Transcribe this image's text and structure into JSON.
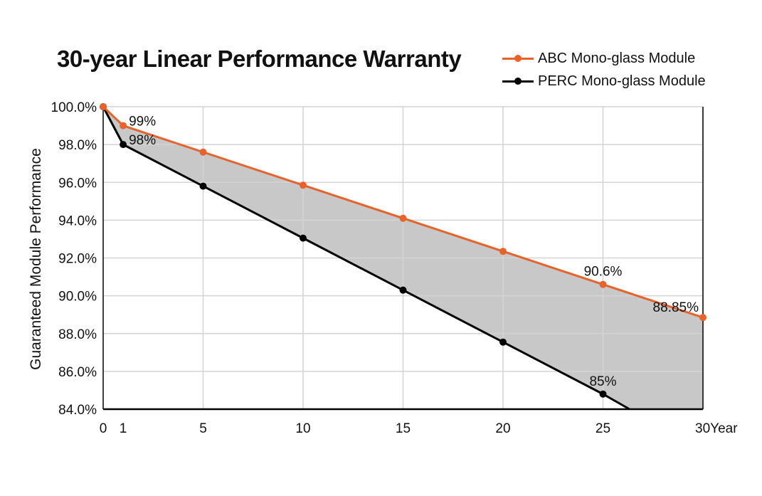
{
  "chart_data": {
    "type": "line",
    "title": "30-year Linear Performance Warranty",
    "xlabel": "Year",
    "ylabel": "Guaranteed Module Performance",
    "x_ticks": [
      0,
      1,
      5,
      10,
      15,
      20,
      25,
      30
    ],
    "x_tick_labels": [
      "0",
      "1",
      "5",
      "10",
      "15",
      "20",
      "25",
      "30Year"
    ],
    "xlim": [
      0,
      30
    ],
    "y_ticks": [
      84,
      86,
      88,
      90,
      92,
      94,
      96,
      98,
      100
    ],
    "y_tick_labels": [
      "84.0%",
      "86.0%",
      "88.0%",
      "90.0%",
      "92.0%",
      "94.0%",
      "96.0%",
      "98.0%",
      "100.0%"
    ],
    "ylim": [
      84,
      100
    ],
    "grid": true,
    "legend_position": "top-right",
    "shade_between_series": true,
    "series": [
      {
        "name": "ABC Mono-glass Module",
        "color": "#E8622C",
        "x": [
          0,
          1,
          5,
          10,
          15,
          20,
          25,
          30
        ],
        "values": [
          100,
          99,
          97.6,
          95.85,
          94.1,
          92.35,
          90.6,
          88.85
        ]
      },
      {
        "name": "PERC Mono-glass Module",
        "color": "#000000",
        "x": [
          0,
          1,
          5,
          10,
          15,
          20,
          25
        ],
        "values": [
          100,
          98,
          95.8,
          93.05,
          90.3,
          87.55,
          84.8
        ],
        "line_end": {
          "x": 26.33,
          "y": 84
        }
      }
    ],
    "annotations": [
      {
        "text": "99%",
        "x": 1,
        "y": 99,
        "anchor": "right"
      },
      {
        "text": "98%",
        "x": 1,
        "y": 98,
        "anchor": "right"
      },
      {
        "text": "90.6%",
        "x": 25,
        "y": 90.6,
        "anchor": "above"
      },
      {
        "text": "88.85%",
        "x": 30,
        "y": 88.85,
        "anchor": "left"
      },
      {
        "text": "85%",
        "x": 25,
        "y": 84.8,
        "anchor": "above"
      }
    ],
    "shade_color": "#C9C8C8",
    "grid_color": "#D4D4D4"
  }
}
